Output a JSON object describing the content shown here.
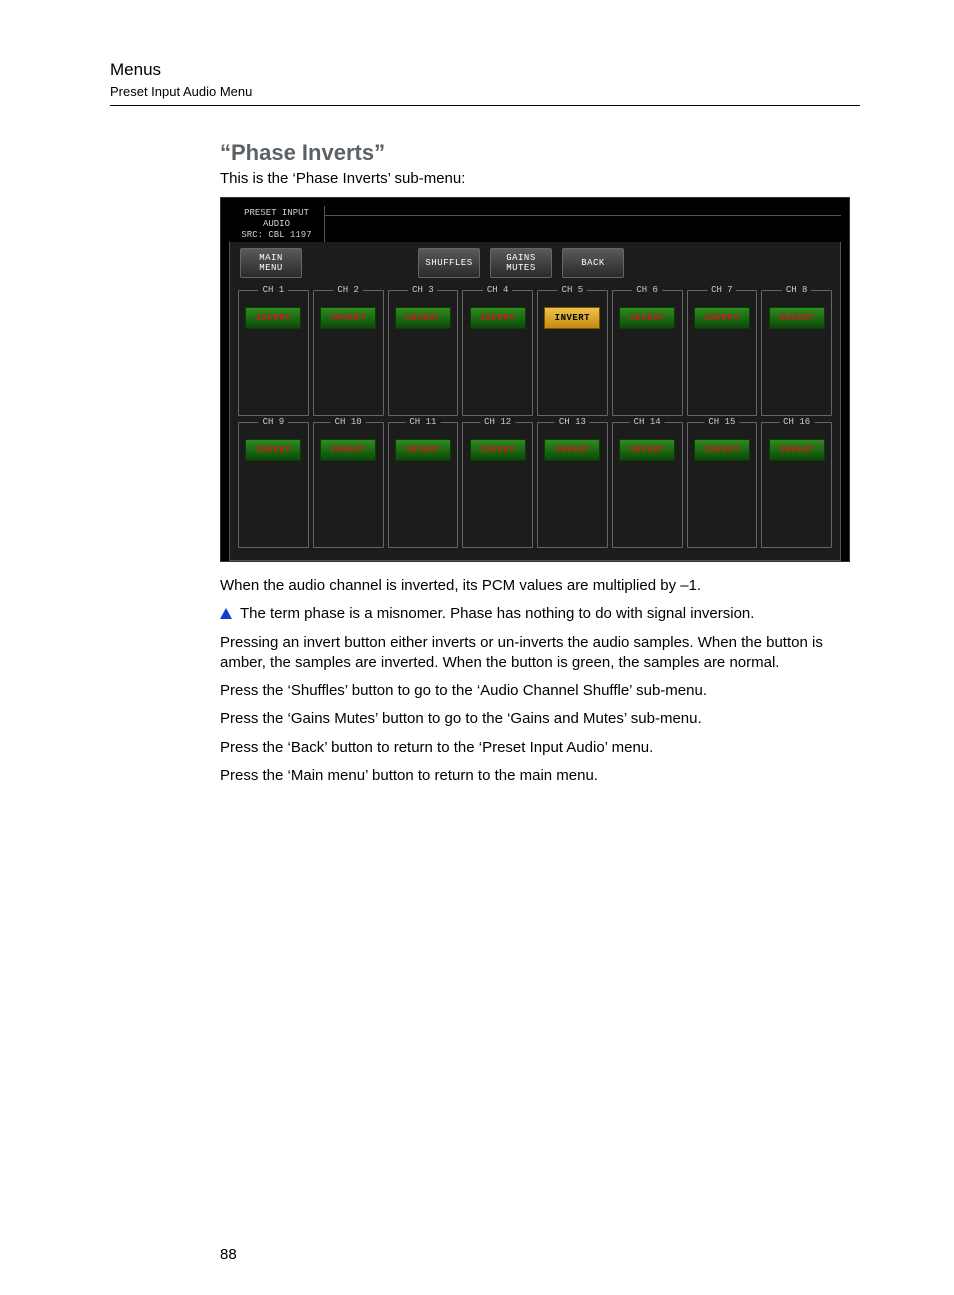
{
  "header": {
    "title": "Menus",
    "subtitle": "Preset Input Audio Menu"
  },
  "section": {
    "title": "“Phase Inverts”",
    "intro": "This is the ‘Phase Inverts’ sub-menu:"
  },
  "ui": {
    "breadcrumb": [
      "PRESET INPUT",
      "AUDIO",
      "SRC: CBL 1197"
    ],
    "nav": {
      "main_menu": "MAIN\nMENU",
      "shuffles": "SHUFFLES",
      "gains_mutes": "GAINS\nMUTES",
      "back": "BACK"
    },
    "button_label": "INVERT",
    "colors": {
      "green_bg_top": "#2f8a1f",
      "green_bg_bot": "#0b4a08",
      "green_text": "#c91d1d",
      "amber_bg_top": "#f0c24a",
      "amber_bg_bot": "#c48a12",
      "amber_text": "#000000",
      "panel_bg": "#1c1c1c",
      "border": "#666666"
    },
    "channels_row1": [
      {
        "label": "CH 1",
        "state": "green"
      },
      {
        "label": "CH 2",
        "state": "green"
      },
      {
        "label": "CH 3",
        "state": "green"
      },
      {
        "label": "CH 4",
        "state": "green"
      },
      {
        "label": "CH 5",
        "state": "amber"
      },
      {
        "label": "CH 6",
        "state": "green"
      },
      {
        "label": "CH 7",
        "state": "green"
      },
      {
        "label": "CH 8",
        "state": "green"
      }
    ],
    "channels_row2": [
      {
        "label": "CH 9",
        "state": "green"
      },
      {
        "label": "CH 10",
        "state": "green"
      },
      {
        "label": "CH 11",
        "state": "green"
      },
      {
        "label": "CH 12",
        "state": "green"
      },
      {
        "label": "CH 13",
        "state": "green"
      },
      {
        "label": "CH 14",
        "state": "green"
      },
      {
        "label": "CH 15",
        "state": "green"
      },
      {
        "label": "CH 16",
        "state": "green"
      }
    ]
  },
  "paras": {
    "p1": "When the audio channel is inverted, its PCM values are multiplied by –1.",
    "note": "The term phase is a misnomer. Phase has nothing to do with signal inversion.",
    "p2": "Pressing an invert button either inverts or un-inverts the audio samples. When the button is amber, the samples are inverted. When the button is green, the samples are normal.",
    "p3": "Press the ‘Shuffles’ button to go to the ‘Audio Channel Shuffle’ sub-menu.",
    "p4": "Press the ‘Gains Mutes’ button to go to the ‘Gains and Mutes’ sub-menu.",
    "p5": "Press the ‘Back’ button to return to the ‘Preset Input Audio’ menu.",
    "p6": "Press the ‘Main menu’ button to return to the main menu."
  },
  "page_number": "88"
}
